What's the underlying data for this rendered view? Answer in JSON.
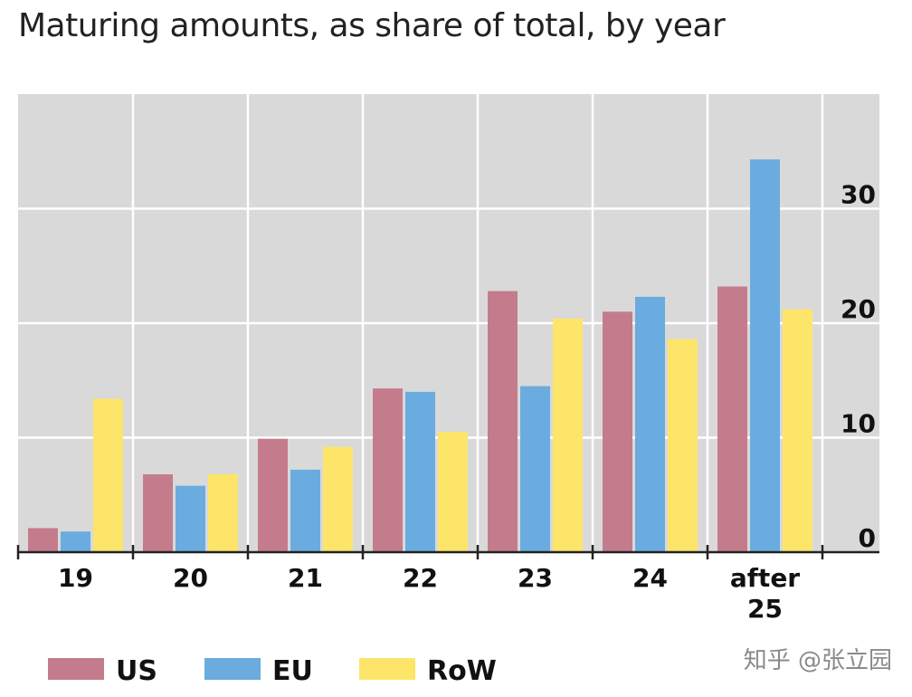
{
  "chart_data": {
    "type": "bar",
    "title": "Maturing amounts, as share of total, by year",
    "categories": [
      "19",
      "20",
      "21",
      "22",
      "23",
      "24",
      "after 25"
    ],
    "series": [
      {
        "name": "US",
        "color": "#c47c8c",
        "values": [
          2.1,
          6.8,
          9.9,
          14.3,
          22.8,
          21.0,
          23.2
        ]
      },
      {
        "name": "EU",
        "color": "#6aacdf",
        "values": [
          1.8,
          5.8,
          7.2,
          14.0,
          14.5,
          22.3,
          34.3
        ]
      },
      {
        "name": "RoW",
        "color": "#fde56a",
        "values": [
          13.4,
          6.8,
          9.2,
          10.5,
          20.4,
          18.6,
          21.2
        ]
      }
    ],
    "y_ticks": [
      "0",
      "10",
      "20",
      "30"
    ],
    "ylim": [
      0,
      40
    ],
    "xlabel": "",
    "ylabel": "",
    "y_axis_side": "right",
    "legend_position": "bottom-left",
    "grid": true
  },
  "watermark": "知乎 @张立园"
}
